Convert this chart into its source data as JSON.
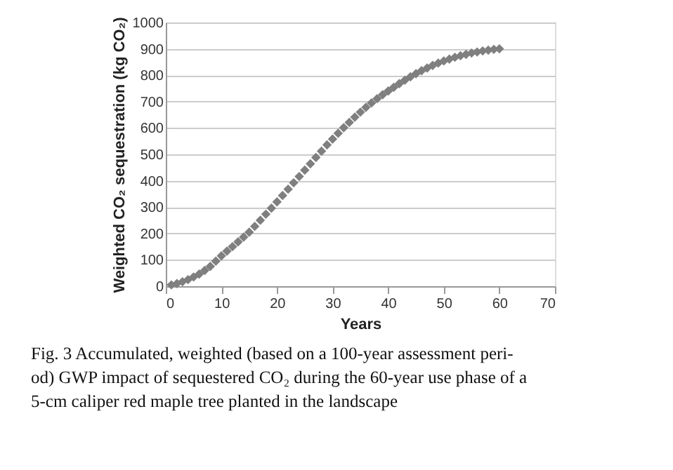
{
  "chart_data": {
    "type": "scatter",
    "xlabel": "Years",
    "ylabel": "Weighted CO₂ sequestration (kg CO₂)",
    "x": [
      1,
      2,
      3,
      4,
      5,
      6,
      7,
      8,
      9,
      10,
      11,
      12,
      13,
      14,
      15,
      16,
      17,
      18,
      19,
      20,
      21,
      22,
      23,
      24,
      25,
      26,
      27,
      28,
      29,
      30,
      31,
      32,
      33,
      34,
      35,
      36,
      37,
      38,
      39,
      40,
      41,
      42,
      43,
      44,
      45,
      46,
      47,
      48,
      49,
      50,
      51,
      52,
      53,
      54,
      55,
      56,
      57,
      58,
      59,
      60
    ],
    "series": [
      {
        "color": "#7f7f7f",
        "values": [
          5,
          10,
          17,
          25,
          35,
          46,
          60,
          75,
          95,
          115,
          133,
          150,
          168,
          186,
          205,
          227,
          250,
          273,
          296,
          320,
          344,
          368,
          392,
          416,
          440,
          464,
          488,
          512,
          536,
          558,
          580,
          601,
          621,
          641,
          660,
          678,
          695,
          711,
          726,
          740,
          754,
          768,
          781,
          794,
          806,
          817,
          827,
          837,
          846,
          854,
          861,
          868,
          874,
          879,
          884,
          888,
          892,
          895,
          898,
          900
        ]
      }
    ],
    "xlim": [
      0,
      70
    ],
    "xticks": [
      0,
      10,
      20,
      30,
      40,
      50,
      60,
      70
    ],
    "ylim": [
      0,
      1000
    ],
    "yticks": [
      0,
      100,
      200,
      300,
      400,
      500,
      600,
      700,
      800,
      900,
      1000
    ],
    "grid": "y",
    "marker": "diamond",
    "annotations": [
      "Fig. 3  Accumulated, weighted (based on a 100-year assessment peri-",
      "od) GWP impact of sequestered CO₂ during the 60-year use phase of a",
      "5-cm caliper red maple tree planted in the landscape"
    ]
  }
}
